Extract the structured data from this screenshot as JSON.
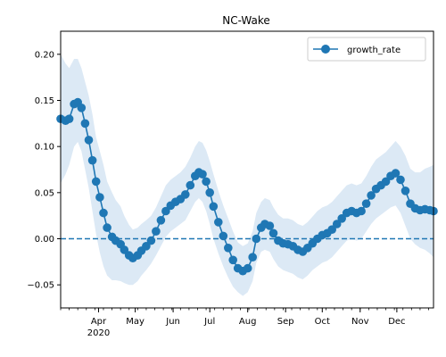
{
  "chart_data": {
    "type": "line",
    "title": "NC-Wake",
    "xlabel": "",
    "ylabel": "",
    "x_range": [
      "2020-03-01",
      "2020-12-31"
    ],
    "ylim": [
      -0.075,
      0.225
    ],
    "grid": false,
    "legend_position": "top-right",
    "x_tick_labels": [
      "Apr",
      "May",
      "Jun",
      "Jul",
      "Aug",
      "Sep",
      "Oct",
      "Nov",
      "Dec"
    ],
    "x_tick_dates": [
      "2020-04-01",
      "2020-05-01",
      "2020-06-01",
      "2020-07-01",
      "2020-08-01",
      "2020-09-01",
      "2020-10-01",
      "2020-11-01",
      "2020-12-01"
    ],
    "x_year_label": "2020",
    "y_ticks": [
      -0.05,
      0.0,
      0.05,
      0.1,
      0.15,
      0.2
    ],
    "y_tick_labels": [
      "−0.05",
      "0.00",
      "0.05",
      "0.10",
      "0.15",
      "0.20"
    ],
    "reference_line": {
      "y": 0.0,
      "style": "dashed"
    },
    "series": [
      {
        "name": "growth_rate",
        "color": "#1f77b4",
        "band_color": "#dce9f5",
        "x": [
          "2020-03-01",
          "2020-03-05",
          "2020-03-08",
          "2020-03-12",
          "2020-03-15",
          "2020-03-18",
          "2020-03-21",
          "2020-03-24",
          "2020-03-27",
          "2020-03-30",
          "2020-04-02",
          "2020-04-05",
          "2020-04-08",
          "2020-04-12",
          "2020-04-15",
          "2020-04-19",
          "2020-04-22",
          "2020-04-26",
          "2020-04-29",
          "2020-05-03",
          "2020-05-06",
          "2020-05-10",
          "2020-05-14",
          "2020-05-18",
          "2020-05-22",
          "2020-05-26",
          "2020-05-30",
          "2020-06-03",
          "2020-06-07",
          "2020-06-11",
          "2020-06-15",
          "2020-06-19",
          "2020-06-22",
          "2020-06-25",
          "2020-06-28",
          "2020-07-01",
          "2020-07-04",
          "2020-07-08",
          "2020-07-12",
          "2020-07-16",
          "2020-07-20",
          "2020-07-24",
          "2020-07-28",
          "2020-08-01",
          "2020-08-05",
          "2020-08-08",
          "2020-08-12",
          "2020-08-15",
          "2020-08-19",
          "2020-08-22",
          "2020-08-26",
          "2020-08-30",
          "2020-09-03",
          "2020-09-07",
          "2020-09-11",
          "2020-09-15",
          "2020-09-19",
          "2020-09-23",
          "2020-09-27",
          "2020-10-01",
          "2020-10-05",
          "2020-10-09",
          "2020-10-13",
          "2020-10-17",
          "2020-10-21",
          "2020-10-25",
          "2020-10-29",
          "2020-11-02",
          "2020-11-06",
          "2020-11-10",
          "2020-11-14",
          "2020-11-18",
          "2020-11-22",
          "2020-11-26",
          "2020-11-30",
          "2020-12-04",
          "2020-12-08",
          "2020-12-12",
          "2020-12-16",
          "2020-12-20",
          "2020-12-24",
          "2020-12-28",
          "2020-12-31"
        ],
        "y": [
          0.13,
          0.128,
          0.13,
          0.146,
          0.148,
          0.142,
          0.125,
          0.107,
          0.085,
          0.062,
          0.045,
          0.028,
          0.012,
          0.002,
          -0.002,
          -0.006,
          -0.012,
          -0.018,
          -0.021,
          -0.018,
          -0.013,
          -0.008,
          -0.002,
          0.008,
          0.02,
          0.03,
          0.036,
          0.04,
          0.043,
          0.048,
          0.058,
          0.068,
          0.072,
          0.07,
          0.062,
          0.05,
          0.035,
          0.018,
          0.003,
          -0.01,
          -0.023,
          -0.032,
          -0.035,
          -0.032,
          -0.02,
          0.0,
          0.012,
          0.016,
          0.014,
          0.006,
          -0.002,
          -0.005,
          -0.006,
          -0.008,
          -0.012,
          -0.014,
          -0.01,
          -0.005,
          0.0,
          0.004,
          0.006,
          0.01,
          0.016,
          0.022,
          0.028,
          0.03,
          0.028,
          0.03,
          0.038,
          0.047,
          0.054,
          0.058,
          0.062,
          0.068,
          0.071,
          0.064,
          0.052,
          0.038,
          0.033,
          0.031,
          0.032,
          0.031,
          0.03
        ],
        "lower": [
          0.06,
          0.07,
          0.08,
          0.1,
          0.105,
          0.095,
          0.075,
          0.055,
          0.03,
          0.005,
          -0.015,
          -0.03,
          -0.04,
          -0.045,
          -0.045,
          -0.046,
          -0.048,
          -0.05,
          -0.05,
          -0.046,
          -0.04,
          -0.034,
          -0.027,
          -0.018,
          -0.008,
          0.002,
          0.008,
          0.012,
          0.016,
          0.02,
          0.03,
          0.04,
          0.044,
          0.04,
          0.03,
          0.016,
          0.0,
          -0.016,
          -0.03,
          -0.042,
          -0.052,
          -0.058,
          -0.062,
          -0.058,
          -0.046,
          -0.026,
          -0.014,
          -0.012,
          -0.014,
          -0.022,
          -0.03,
          -0.034,
          -0.036,
          -0.038,
          -0.042,
          -0.044,
          -0.04,
          -0.034,
          -0.03,
          -0.026,
          -0.024,
          -0.02,
          -0.014,
          -0.008,
          -0.002,
          0.0,
          -0.002,
          0.0,
          0.008,
          0.016,
          0.022,
          0.026,
          0.03,
          0.034,
          0.036,
          0.028,
          0.014,
          0.0,
          -0.006,
          -0.01,
          -0.012,
          -0.016,
          -0.02
        ],
        "upper": [
          0.2,
          0.19,
          0.185,
          0.195,
          0.195,
          0.185,
          0.17,
          0.155,
          0.135,
          0.11,
          0.095,
          0.08,
          0.062,
          0.05,
          0.042,
          0.035,
          0.025,
          0.015,
          0.01,
          0.012,
          0.016,
          0.02,
          0.025,
          0.034,
          0.046,
          0.058,
          0.064,
          0.068,
          0.072,
          0.078,
          0.088,
          0.1,
          0.106,
          0.104,
          0.096,
          0.084,
          0.07,
          0.052,
          0.036,
          0.022,
          0.008,
          -0.004,
          -0.008,
          -0.005,
          0.008,
          0.028,
          0.04,
          0.044,
          0.042,
          0.034,
          0.026,
          0.022,
          0.022,
          0.02,
          0.016,
          0.014,
          0.018,
          0.024,
          0.03,
          0.034,
          0.036,
          0.04,
          0.046,
          0.052,
          0.058,
          0.06,
          0.058,
          0.06,
          0.068,
          0.078,
          0.086,
          0.09,
          0.094,
          0.1,
          0.106,
          0.1,
          0.09,
          0.076,
          0.072,
          0.072,
          0.076,
          0.078,
          0.08
        ]
      }
    ]
  }
}
